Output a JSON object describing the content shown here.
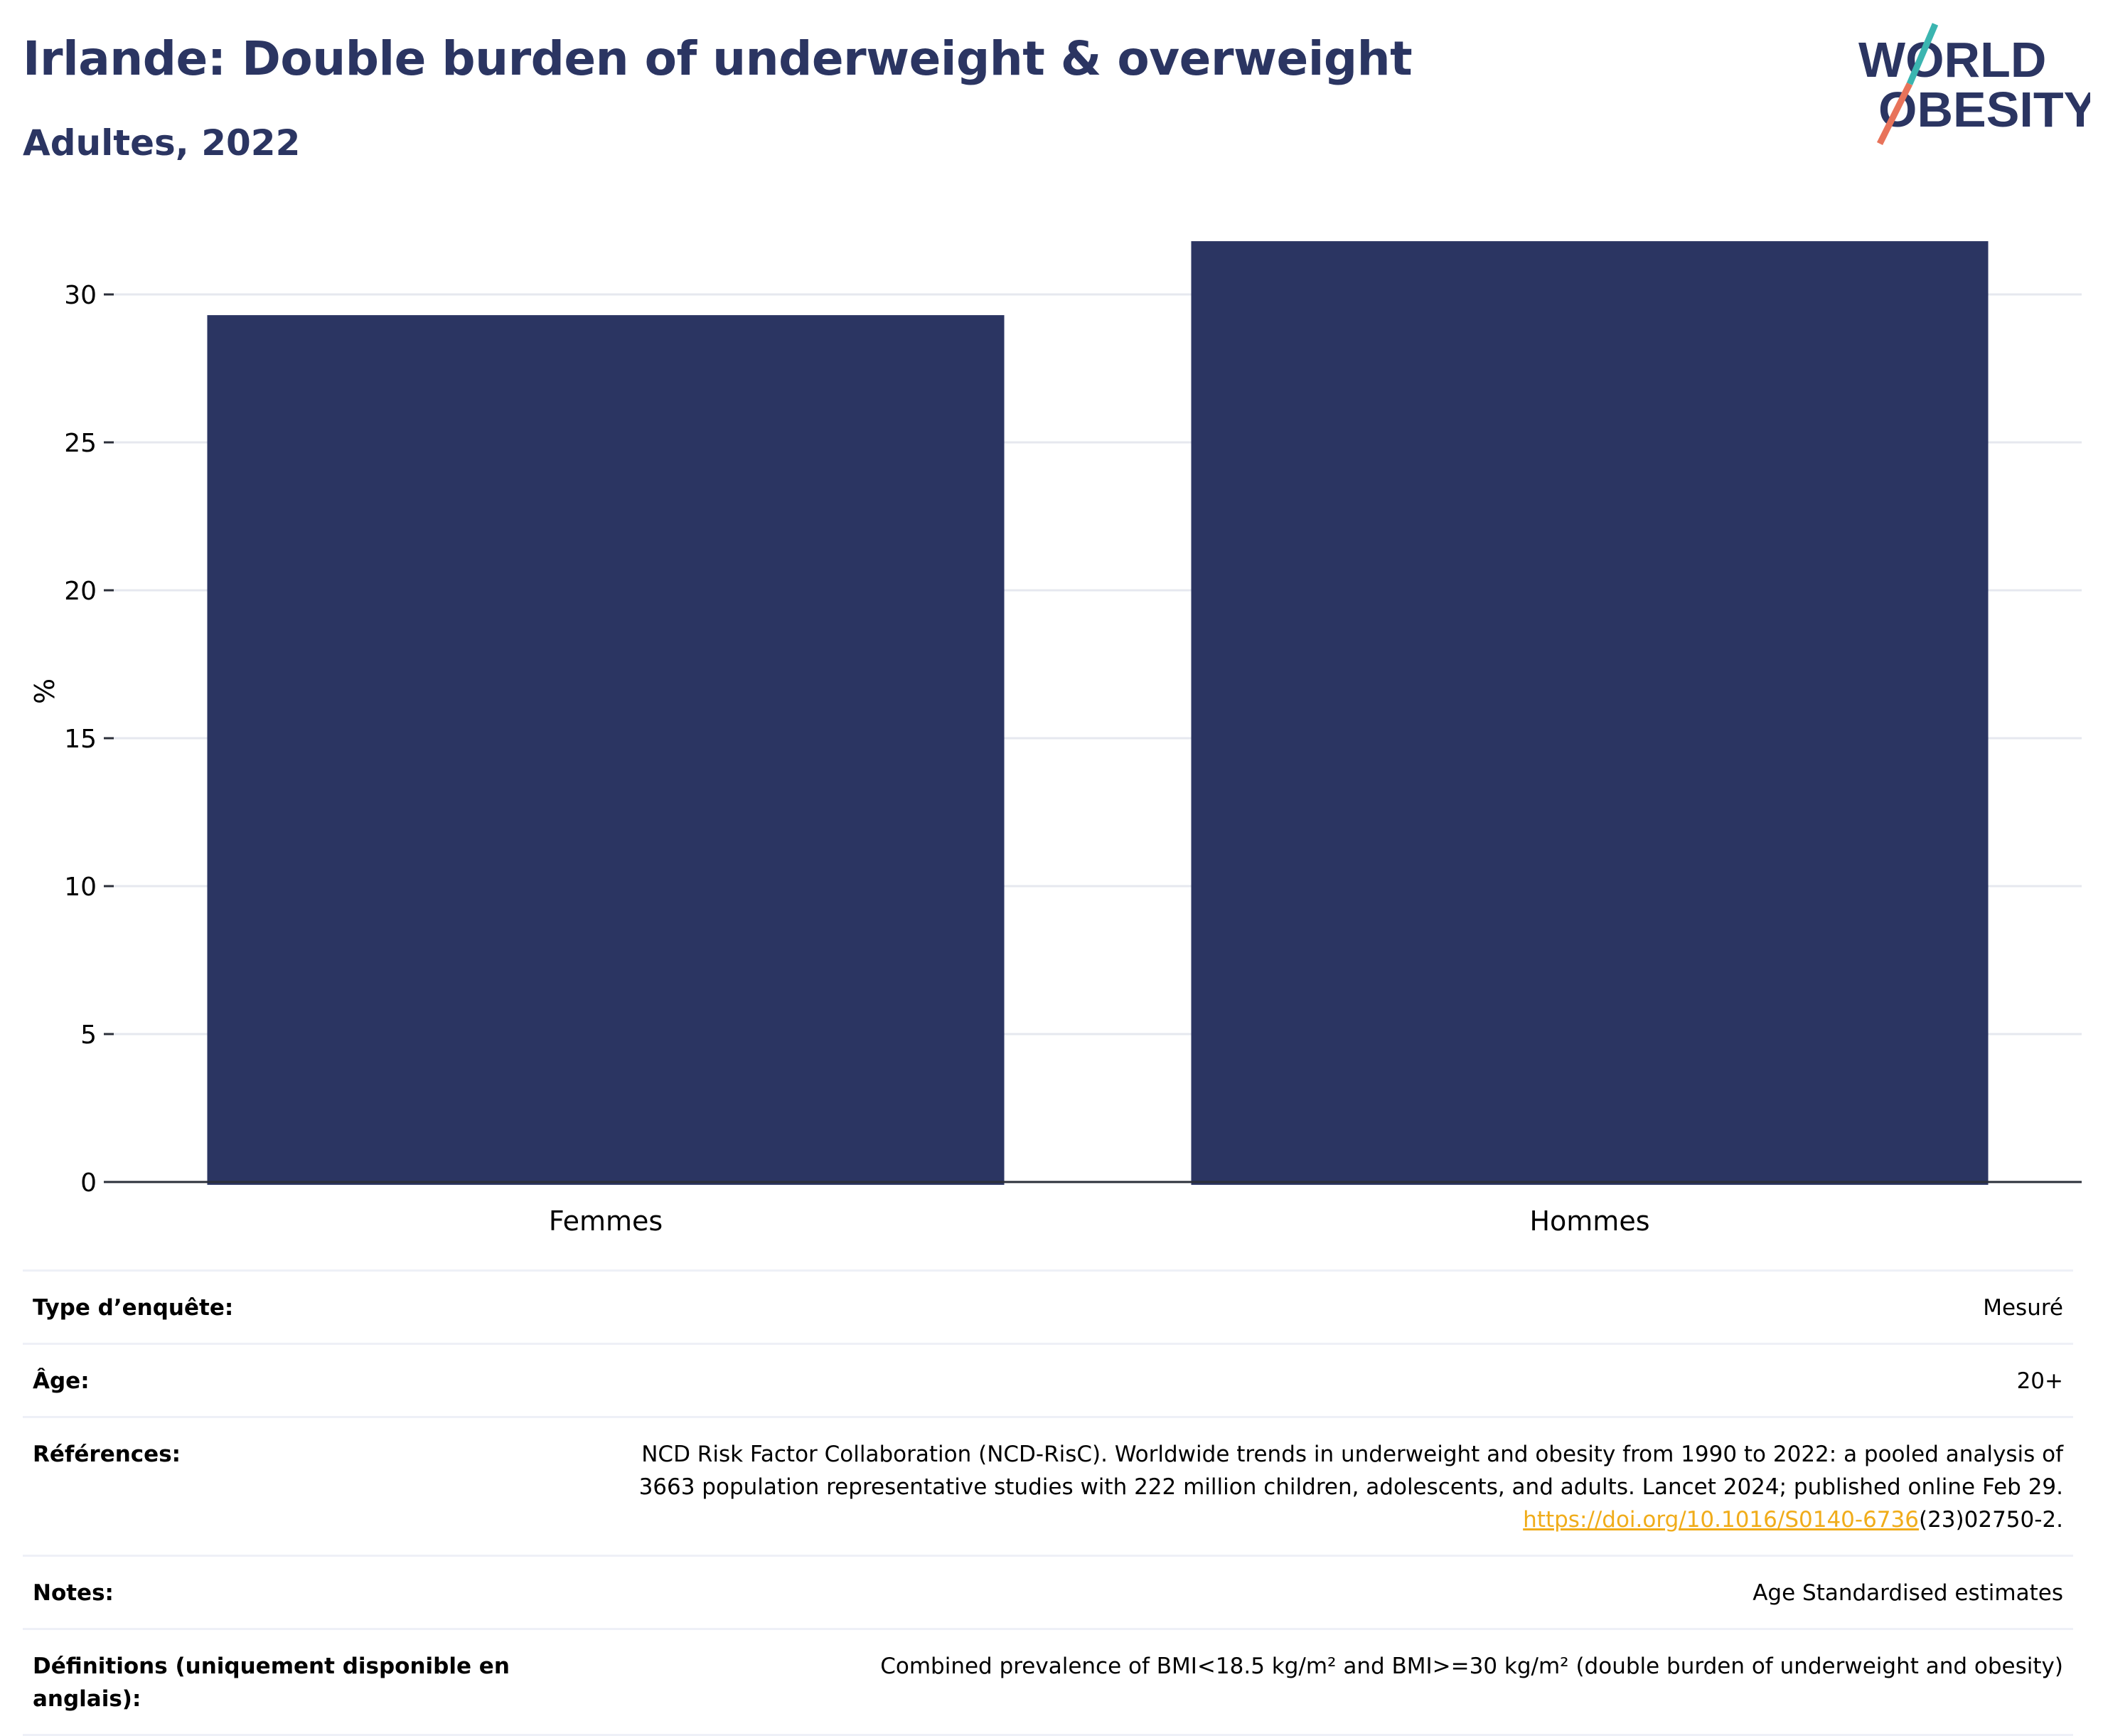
{
  "title": "Irlande: Double burden of underweight & overweight",
  "subtitle": "Adultes, 2022",
  "logo": {
    "line1": "WORLD",
    "line2": "OBESITY",
    "colors": [
      "#2b3562",
      "#3bb5b0",
      "#e8735a"
    ]
  },
  "colors": {
    "bar": "#2b3562",
    "grid": "#e6e8ef",
    "axis": "#2b2f3a",
    "link": "#f0ac1a"
  },
  "chart_data": {
    "type": "bar",
    "categories": [
      "Femmes",
      "Hommes"
    ],
    "values": [
      29.3,
      31.8
    ],
    "ylabel": "%",
    "ylim": [
      0,
      32
    ],
    "yticks": [
      0,
      5,
      10,
      15,
      20,
      25,
      30
    ],
    "grid": true
  },
  "table": {
    "survey_label": "Type d’enquête:",
    "survey_value": "Mesuré",
    "age_label": "Âge:",
    "age_value": "20+",
    "ref_label": "Références:",
    "ref_line1": "NCD Risk Factor Collaboration (NCD-RisC). Worldwide trends in underweight and obesity from 1990 to 2022: a pooled analysis of",
    "ref_line2": "3663 population representative studies with 222 million children, adolescents, and adults. Lancet 2024; published online Feb 29.",
    "ref_link": "https://doi.org/10.1016/S0140-6736",
    "ref_tail": "(23)02750-2.",
    "notes_label": "Notes:",
    "notes_value": "Age Standardised estimates",
    "def_label": "Définitions (uniquement disponible en anglais):",
    "def_value": "Combined prevalence of BMI<18.5 kg/m² and BMI>=30 kg/m² (double burden of underweight and obesity)"
  }
}
